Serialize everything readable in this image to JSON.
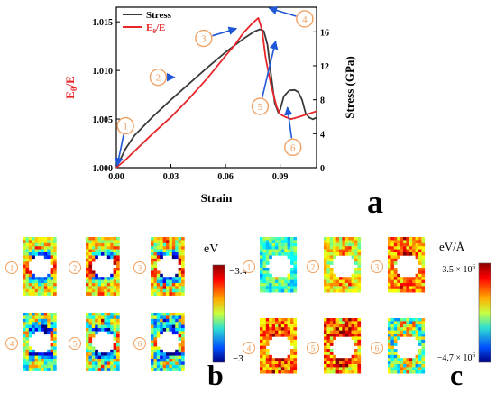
{
  "chart_data": {
    "type": "line",
    "xlabel": "Strain",
    "ylabel_left": "E",
    "ylabel_left_sub": "θ",
    "ylabel_left_tail": "/E",
    "ylabel_right": "Stress (GPa)",
    "xlim": [
      0,
      0.11
    ],
    "ylim_left": [
      1.0,
      1.0165
    ],
    "ylim_right": [
      0,
      18.9
    ],
    "x_ticks": [
      {
        "v": 0.0,
        "label": "0.00"
      },
      {
        "v": 0.03,
        "label": "0.03"
      },
      {
        "v": 0.06,
        "label": "0.06"
      },
      {
        "v": 0.09,
        "label": "0.09"
      }
    ],
    "y_left_ticks": [
      {
        "v": 1.0,
        "label": "1.000"
      },
      {
        "v": 1.005,
        "label": "1.005"
      },
      {
        "v": 1.01,
        "label": "1.010"
      },
      {
        "v": 1.015,
        "label": "1.015"
      }
    ],
    "y_right_ticks": [
      {
        "v": 0,
        "label": "0"
      },
      {
        "v": 4,
        "label": "4"
      },
      {
        "v": 8,
        "label": "8"
      },
      {
        "v": 12,
        "label": "12"
      },
      {
        "v": 16,
        "label": "16"
      }
    ],
    "legend": [
      "Stress",
      "E",
      "θ",
      "/E"
    ],
    "series": [
      {
        "name": "Stress",
        "color": "#3a3a3a",
        "x": [
          0.0,
          0.005,
          0.01,
          0.02,
          0.03,
          0.04,
          0.05,
          0.06,
          0.07,
          0.076,
          0.079,
          0.081,
          0.083,
          0.085,
          0.087,
          0.089,
          0.09,
          0.092,
          0.095,
          0.098,
          0.1,
          0.102,
          0.104,
          0.106,
          0.108,
          0.11
        ],
        "y": [
          0.0,
          2.2,
          3.8,
          6.0,
          8.0,
          9.9,
          11.8,
          13.6,
          15.2,
          16.05,
          16.3,
          16.1,
          14.5,
          11.0,
          7.6,
          6.5,
          6.8,
          8.4,
          9.1,
          9.15,
          8.9,
          8.0,
          6.4,
          5.9,
          5.7,
          5.9
        ]
      },
      {
        "name": "E",
        "color": "#e8262a",
        "axis": "left",
        "x": [
          0.0,
          0.005,
          0.01,
          0.02,
          0.03,
          0.04,
          0.05,
          0.06,
          0.065,
          0.07,
          0.075,
          0.078,
          0.08,
          0.082,
          0.085,
          0.088,
          0.09,
          0.093,
          0.096,
          0.1,
          0.105,
          0.11
        ],
        "y": [
          1.0,
          1.0008,
          1.0017,
          1.0035,
          1.0052,
          1.0071,
          1.0092,
          1.0115,
          1.0126,
          1.0139,
          1.0149,
          1.0154,
          1.0142,
          1.0113,
          1.0085,
          1.0063,
          1.0055,
          1.0052,
          1.005,
          1.0052,
          1.0055,
          1.0058
        ]
      }
    ],
    "annotations": [
      {
        "label": "1",
        "x": 0.005,
        "yl": 1.0043
      },
      {
        "label": "2",
        "x": 0.023,
        "yl": 1.0093
      },
      {
        "label": "3",
        "x": 0.048,
        "yl": 1.0133
      },
      {
        "label": "4",
        "x": 0.1035,
        "yl": 1.0153
      },
      {
        "label": "5",
        "x": 0.079,
        "yl": 1.0063
      },
      {
        "label": "6",
        "x": 0.097,
        "yl": 1.0021
      }
    ],
    "panel_letter": "a"
  },
  "panel_b": {
    "unit": "eV",
    "scale_max": "−3.4",
    "scale_min": "−3",
    "letter": "b",
    "labels": [
      "1",
      "2",
      "3",
      "4",
      "5",
      "6"
    ]
  },
  "panel_c": {
    "unit": "eV/Å",
    "scale_max_base": "3.5 × 10",
    "scale_max_exp": "6",
    "scale_min_base": "−4.7 × 10",
    "scale_min_exp": "6",
    "letter": "c",
    "labels": [
      "1",
      "2",
      "3",
      "4",
      "5",
      "6"
    ]
  },
  "colors": {
    "stress": "#3a3a3a",
    "ratio": "#e8262a",
    "arrow": "#1f57d6",
    "marker": "#f0a060"
  }
}
